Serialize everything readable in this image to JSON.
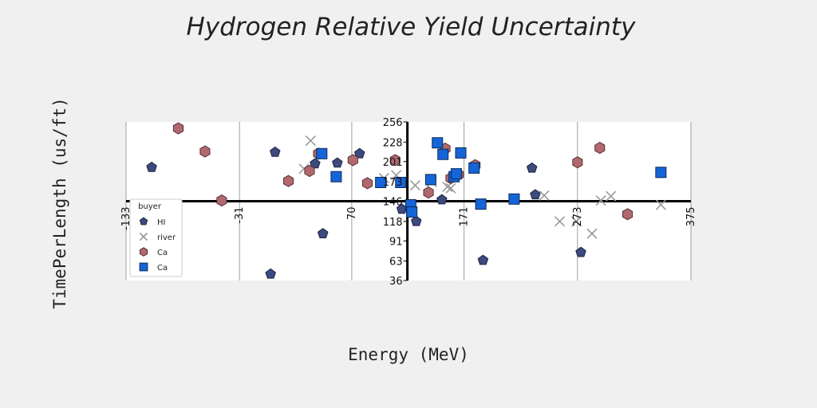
{
  "chart_data": {
    "type": "scatter",
    "title": "Hydrogen Relative Yield Uncertainty",
    "xlabel": "Energy (MeV)",
    "ylabel": "TimePerLength (us/ft)",
    "xlim": [
      -133,
      375
    ],
    "ylim": [
      36,
      256
    ],
    "x_ticks": [
      "-133",
      "-31",
      "70",
      "171",
      "273",
      "375"
    ],
    "y_ticks": [
      "36",
      "63",
      "91",
      "118",
      "146",
      "173",
      "201",
      "228",
      "256"
    ],
    "x_axis_crosses_y_at": 146,
    "y_axis_crosses_x_at": 120,
    "grid": "vertical",
    "legend": {
      "title": "buyer",
      "position": "left"
    },
    "series": [
      {
        "name": "HI",
        "marker": "pentagon",
        "color": "#3d4a7e",
        "x": [
          -110,
          1,
          -3,
          37,
          44,
          57,
          77,
          115,
          128,
          151,
          188,
          232,
          235,
          276
        ],
        "y": [
          193,
          214,
          45,
          198,
          101,
          199,
          212,
          135,
          118,
          148,
          64,
          192,
          155,
          75
        ]
      },
      {
        "name": "river",
        "marker": "x",
        "color": "#999999",
        "x": [
          27,
          33,
          99,
          110,
          127,
          142,
          156,
          159,
          243,
          257,
          272,
          286,
          294,
          303,
          348
        ],
        "y": [
          191,
          230,
          178,
          182,
          168,
          173,
          166,
          164,
          154,
          118,
          118,
          101,
          147,
          153,
          141
        ]
      },
      {
        "name": "Ca",
        "marker": "hexagon",
        "color": "#b06a6f",
        "x": [
          -86,
          -62,
          -47,
          13,
          32,
          40,
          71,
          84,
          109,
          139,
          154,
          159,
          166,
          181,
          273,
          293,
          318
        ],
        "y": [
          247,
          215,
          147,
          174,
          188,
          212,
          203,
          171,
          203,
          158,
          219,
          178,
          183,
          196,
          200,
          220,
          128
        ]
      },
      {
        "name": "Ca",
        "marker": "square",
        "color": "#1565d8",
        "x": [
          43,
          56,
          96,
          114,
          123,
          124,
          141,
          147,
          152,
          162,
          164,
          168,
          180,
          186,
          216,
          348
        ],
        "y": [
          212,
          180,
          172,
          172,
          141,
          131,
          176,
          227,
          211,
          180,
          184,
          213,
          192,
          142,
          149,
          186
        ]
      }
    ]
  }
}
